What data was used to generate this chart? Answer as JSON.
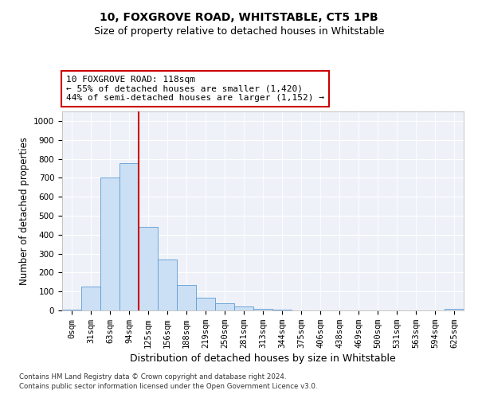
{
  "title": "10, FOXGROVE ROAD, WHITSTABLE, CT5 1PB",
  "subtitle": "Size of property relative to detached houses in Whitstable",
  "xlabel": "Distribution of detached houses by size in Whitstable",
  "ylabel": "Number of detached properties",
  "bar_labels": [
    "0sqm",
    "31sqm",
    "63sqm",
    "94sqm",
    "125sqm",
    "156sqm",
    "188sqm",
    "219sqm",
    "250sqm",
    "281sqm",
    "313sqm",
    "344sqm",
    "375sqm",
    "406sqm",
    "438sqm",
    "469sqm",
    "500sqm",
    "531sqm",
    "563sqm",
    "594sqm",
    "625sqm"
  ],
  "bar_values": [
    5,
    125,
    700,
    775,
    440,
    270,
    135,
    68,
    38,
    20,
    8,
    3,
    2,
    1,
    0,
    0,
    0,
    0,
    0,
    0,
    8
  ],
  "bar_color": "#cce0f5",
  "bar_edge_color": "#5b9bd5",
  "vline_color": "#cc0000",
  "annotation_text": "10 FOXGROVE ROAD: 118sqm\n← 55% of detached houses are smaller (1,420)\n44% of semi-detached houses are larger (1,152) →",
  "annotation_box_color": "#ffffff",
  "annotation_box_edge": "#cc0000",
  "ylim": [
    0,
    1050
  ],
  "yticks": [
    0,
    100,
    200,
    300,
    400,
    500,
    600,
    700,
    800,
    900,
    1000
  ],
  "footer1": "Contains HM Land Registry data © Crown copyright and database right 2024.",
  "footer2": "Contains public sector information licensed under the Open Government Licence v3.0.",
  "bg_color": "#eef2f8",
  "grid_color": "#ffffff",
  "title_fontsize": 10,
  "subtitle_fontsize": 9,
  "axis_label_fontsize": 8.5,
  "tick_fontsize": 7.5,
  "annotation_fontsize": 8
}
